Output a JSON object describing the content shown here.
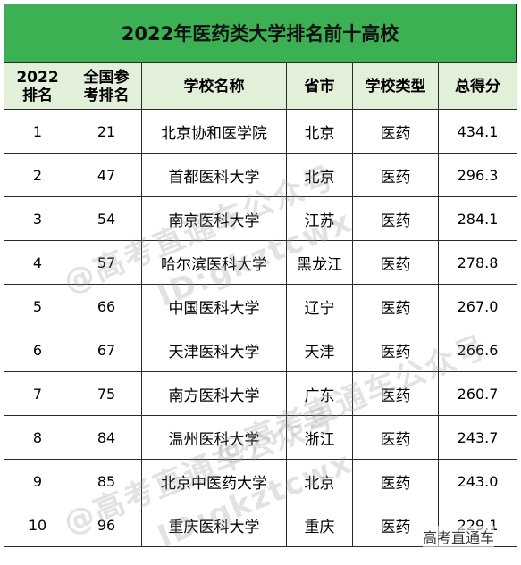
{
  "title": "2022年医药类大学排名前十高校",
  "headers": [
    "2022\n排名",
    "全国参\n考排名",
    "学校名称",
    "省市",
    "学校类型",
    "总得分"
  ],
  "rows": [
    [
      "1",
      "21",
      "北京协和医学院",
      "北京",
      "医药",
      "434.1"
    ],
    [
      "2",
      "47",
      "首都医科大学",
      "北京",
      "医药",
      "296.3"
    ],
    [
      "3",
      "54",
      "南京医科大学",
      "江苏",
      "医药",
      "284.1"
    ],
    [
      "4",
      "57",
      "哈尔滨医科大学",
      "黑龙江",
      "医药",
      "278.8"
    ],
    [
      "5",
      "66",
      "中国医科大学",
      "辽宁",
      "医药",
      "267.0"
    ],
    [
      "6",
      "67",
      "天津医科大学",
      "天津",
      "医药",
      "266.6"
    ],
    [
      "7",
      "75",
      "南方医科大学",
      "广东",
      "医药",
      "260.7"
    ],
    [
      "8",
      "84",
      "温州医科大学",
      "浙江",
      "医药",
      "243.7"
    ],
    [
      "9",
      "85",
      "北京中医药大学",
      "北京",
      "医药",
      "243.0"
    ],
    [
      "10",
      "96",
      "重庆医科大学",
      "重庆",
      "医药",
      "229.1"
    ]
  ],
  "watermarks": {
    "line1": "@高考直通车公众号",
    "line2": "ID:gkztcwx"
  },
  "corner_mark": "高考直通车",
  "colors": {
    "title_bg": "#3cb154",
    "header_bg": "#e2efd9"
  }
}
